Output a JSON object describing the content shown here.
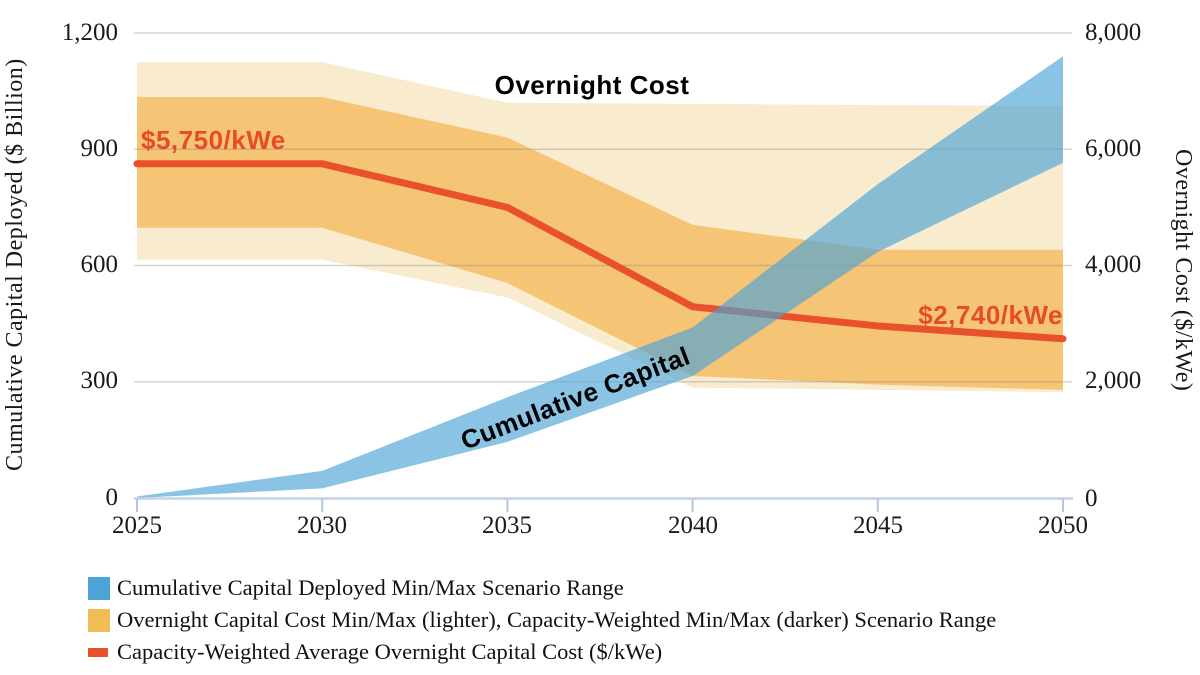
{
  "chart_data": {
    "type": "area",
    "title": "",
    "x": [
      2025,
      2030,
      2035,
      2040,
      2045,
      2050
    ],
    "x_tick_labels": [
      "2025",
      "2030",
      "2035",
      "2040",
      "2045",
      "2050"
    ],
    "left_axis": {
      "label": "Cumulative Capital Deployed ($ Billion)",
      "tick_labels": [
        "1,200",
        "900",
        "600",
        "300",
        "0"
      ],
      "tick_values": [
        1200,
        900,
        600,
        300,
        0
      ],
      "range": [
        0,
        1200
      ]
    },
    "right_axis": {
      "label": "Overnight Cost ($/kWe)",
      "tick_labels": [
        "8,000",
        "6,000",
        "4,000",
        "2,000",
        "0"
      ],
      "tick_values": [
        8000,
        6000,
        4000,
        2000,
        0
      ],
      "range": [
        0,
        8000
      ]
    },
    "grid": true,
    "series": [
      {
        "name": "overnight-cost-minmax-band",
        "legend": "Overnight Capital Cost Min/Max Scenario Range (lighter)",
        "axis": "right",
        "kind": "band",
        "color": "#F8EBCE",
        "opacity": 1,
        "min": [
          4100,
          4100,
          3450,
          1900,
          1860,
          1820
        ],
        "max": [
          7500,
          7500,
          6800,
          6780,
          6760,
          6750
        ]
      },
      {
        "name": "capacity-weighted-minmax-band",
        "legend": "Capacity-Weighted Min/Max Scenario Range (darker)",
        "axis": "right",
        "kind": "band",
        "color": "#F5C475",
        "opacity": 1,
        "min": [
          4650,
          4650,
          3700,
          2100,
          1950,
          1860
        ],
        "max": [
          6900,
          6900,
          6200,
          4700,
          4270,
          4270
        ]
      },
      {
        "name": "capacity-weighted-average-line",
        "legend": "Capacity-Weighted Average Overnight Capital Cost ($/kWe)",
        "axis": "right",
        "kind": "line",
        "color": "#E8512C",
        "width": 7,
        "values": [
          5750,
          5750,
          5000,
          3290,
          2960,
          2740
        ]
      },
      {
        "name": "cumulative-capital-band",
        "legend": "Cumulative Capital Deployed Min/Max Scenario Range",
        "axis": "left",
        "kind": "band",
        "color": "#4BA3D6",
        "opacity": 0.65,
        "min": [
          0,
          25,
          145,
          315,
          635,
          865
        ],
        "max": [
          4,
          70,
          260,
          440,
          810,
          1140
        ]
      }
    ],
    "annotations": [
      {
        "text": "Overnight Cost",
        "color": "#000000"
      },
      {
        "text": "Cumulative Capital",
        "color": "#000000"
      },
      {
        "text": "$5,750/kWe",
        "color": "#E74C28"
      },
      {
        "text": "$2,740/kWe",
        "color": "#E74C28"
      }
    ]
  },
  "legend": {
    "items": [
      {
        "swatch": "square",
        "swatch_color": "#4BA3D6",
        "label": "Cumulative Capital Deployed Min/Max Scenario Range"
      },
      {
        "swatch": "square",
        "swatch_color": "#F2BC55",
        "label": "Overnight Capital Cost Min/Max (lighter), Capacity-Weighted Min/Max (darker) Scenario Range"
      },
      {
        "swatch": "dash",
        "swatch_color": "#E8502A",
        "label": "Capacity-Weighted Average Overnight Capital Cost ($/kWe)"
      }
    ]
  },
  "colors": {
    "gridline": "rgba(128,128,128,0.32)",
    "axis_line": "#C5D2E5",
    "tick": "#B6C6E0",
    "background": "#FFFFFF"
  }
}
